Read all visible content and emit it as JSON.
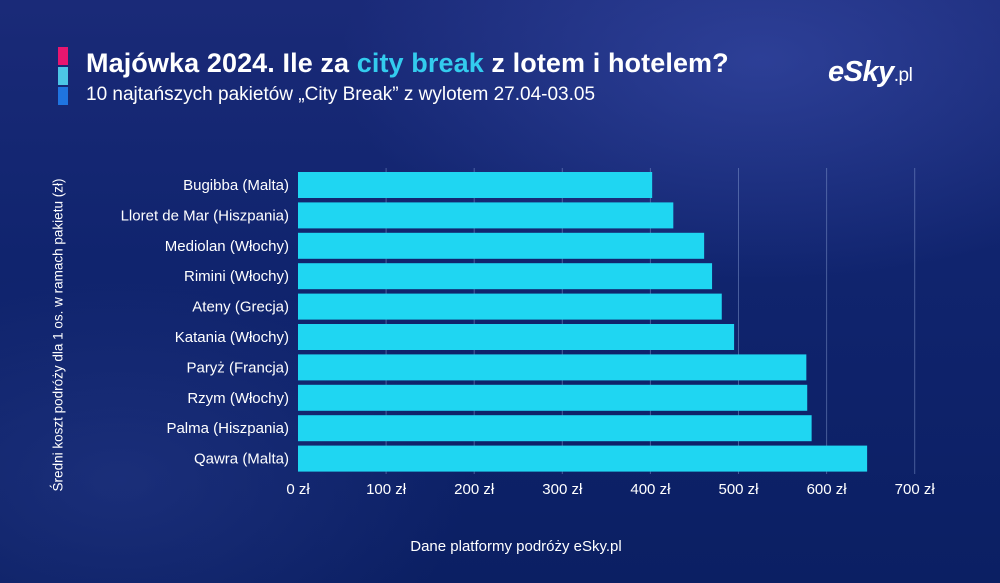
{
  "header": {
    "title_before": "Majówka 2024. Ile za ",
    "title_highlight": "city break",
    "title_after": " z lotem i hotelem?",
    "subtitle": "10 najtańszych pakietów „City Break” z wylotem 27.04-03.05",
    "accent_colors": [
      "#e8166f",
      "#4cc6e6",
      "#1f74e0"
    ]
  },
  "logo": {
    "main": "eSky",
    "suffix": ".pl"
  },
  "chart_data": {
    "type": "bar",
    "orientation": "horizontal",
    "categories": [
      "Bugibba (Malta)",
      "Lloret de Mar (Hiszpania)",
      "Mediolan (Włochy)",
      "Rimini (Włochy)",
      "Ateny (Grecja)",
      "Katania (Włochy)",
      "Paryż (Francja)",
      "Rzym (Włochy)",
      "Palma (Hiszpania)",
      "Qawra (Malta)"
    ],
    "values": [
      402,
      426,
      461,
      470,
      481,
      495,
      577,
      578,
      583,
      646
    ],
    "xlim": [
      0,
      700
    ],
    "xticks": [
      0,
      100,
      200,
      300,
      400,
      500,
      600,
      700
    ],
    "tick_labels": [
      "0 zł",
      "100 zł",
      "200 zł",
      "300 zł",
      "400 zł",
      "500 zł",
      "600 zł",
      "700 zł"
    ],
    "ylabel": "Średni koszt podróży dla 1 os. w ramach pakietu (zł)",
    "xlabel": "Dane platformy podróży eSky.pl",
    "grid": true,
    "bar_color": "#1fd6f2",
    "grid_color": "#8fa3d8"
  }
}
